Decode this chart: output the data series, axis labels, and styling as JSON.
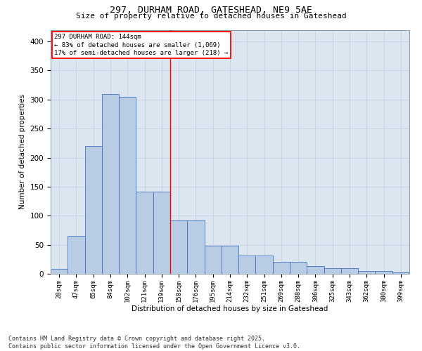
{
  "title_line1": "297, DURHAM ROAD, GATESHEAD, NE9 5AE",
  "title_line2": "Size of property relative to detached houses in Gateshead",
  "xlabel": "Distribution of detached houses by size in Gateshead",
  "ylabel": "Number of detached properties",
  "categories": [
    "28sqm",
    "47sqm",
    "65sqm",
    "84sqm",
    "102sqm",
    "121sqm",
    "139sqm",
    "158sqm",
    "176sqm",
    "195sqm",
    "214sqm",
    "232sqm",
    "251sqm",
    "269sqm",
    "288sqm",
    "306sqm",
    "325sqm",
    "343sqm",
    "362sqm",
    "380sqm",
    "399sqm"
  ],
  "bar_heights": [
    8,
    65,
    220,
    310,
    305,
    142,
    142,
    92,
    92,
    48,
    48,
    32,
    32,
    20,
    20,
    13,
    10,
    10,
    5,
    5,
    3
  ],
  "bar_color": "#b8cce4",
  "bar_edgecolor": "#4472c4",
  "grid_color": "#c8d4e3",
  "bg_color": "#dce6f1",
  "annotation_text": "297 DURHAM ROAD: 144sqm\n← 83% of detached houses are smaller (1,069)\n17% of semi-detached houses are larger (218) →",
  "vline_x": 7.0,
  "footer_line1": "Contains HM Land Registry data © Crown copyright and database right 2025.",
  "footer_line2": "Contains public sector information licensed under the Open Government Licence v3.0.",
  "ylim": [
    0,
    420
  ],
  "yticks": [
    0,
    50,
    100,
    150,
    200,
    250,
    300,
    350,
    400
  ]
}
